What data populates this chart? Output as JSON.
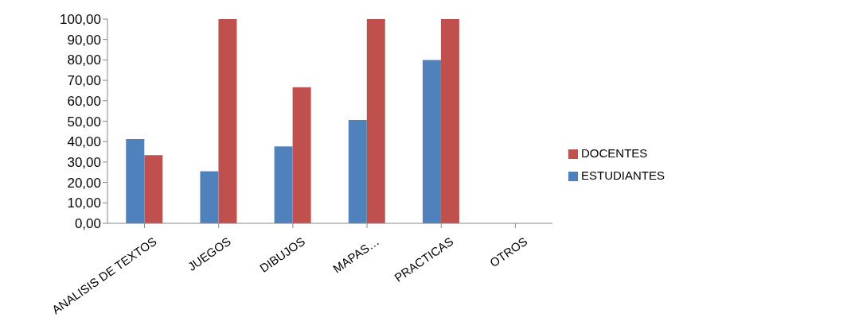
{
  "chart_data": {
    "type": "bar",
    "categories": [
      "ANALISIS DE TEXTOS",
      "JUEGOS",
      "DIBUJOS",
      "MAPAS…",
      "PRACTICAS",
      "OTROS"
    ],
    "series": [
      {
        "name": "ESTUDIANTES",
        "color": "#4f81bd",
        "values": [
          41.2,
          25.5,
          37.6,
          50.6,
          80.0,
          0
        ]
      },
      {
        "name": "DOCENTES",
        "color": "#c0504d",
        "values": [
          33.4,
          100,
          66.6,
          100,
          100,
          0
        ]
      }
    ],
    "ylim": [
      0,
      100
    ],
    "yticks": [
      {
        "value": 0,
        "label": "0,00"
      },
      {
        "value": 10,
        "label": "10,00"
      },
      {
        "value": 20,
        "label": "20,00"
      },
      {
        "value": 30,
        "label": "30,00"
      },
      {
        "value": 40,
        "label": "40,00"
      },
      {
        "value": 50,
        "label": "50,00"
      },
      {
        "value": 60,
        "label": "60,00"
      },
      {
        "value": 70,
        "label": "70,00"
      },
      {
        "value": 80,
        "label": "80,00"
      },
      {
        "value": 90,
        "label": "90,00"
      },
      {
        "value": 100,
        "label": "100,00"
      }
    ],
    "grid": false,
    "legend": "right"
  }
}
